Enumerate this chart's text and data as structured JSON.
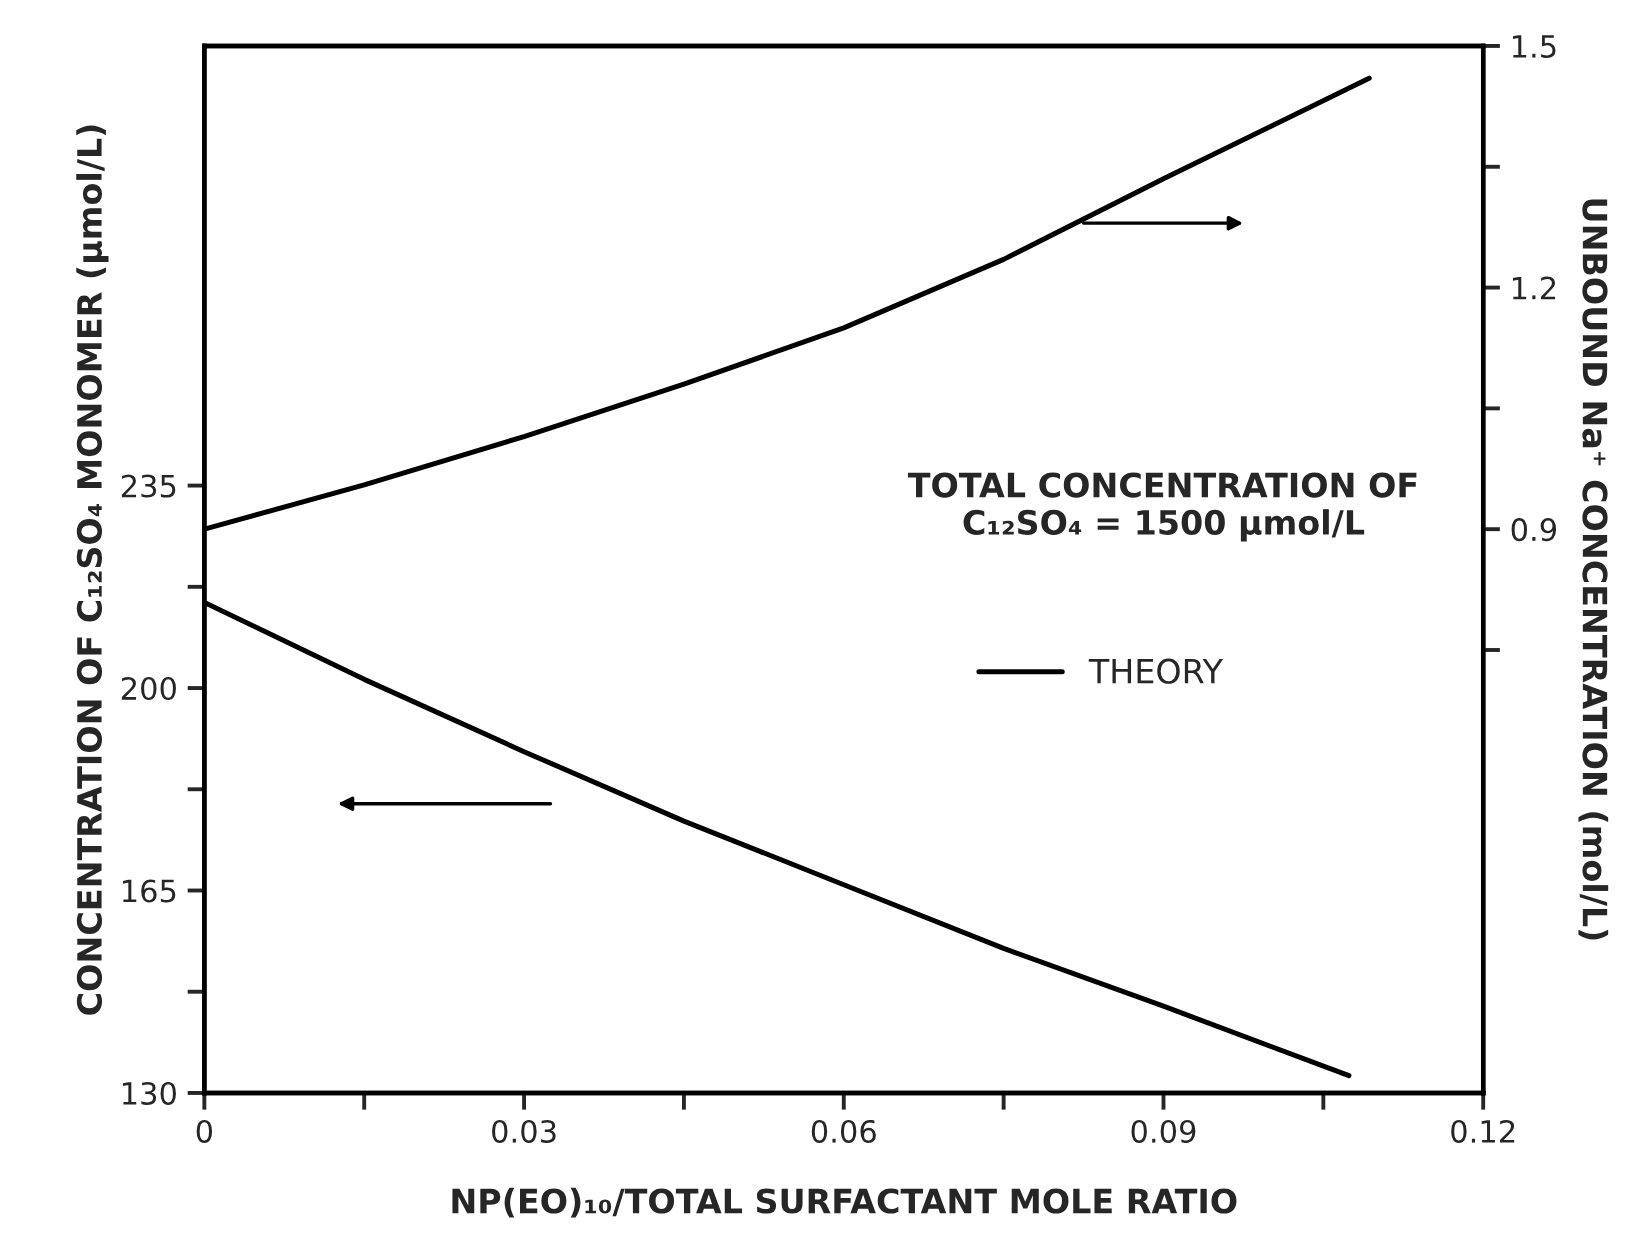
{
  "chart_data": {
    "type": "line",
    "xlabel": "NP(EO)₁₀/TOTAL SURFACTANT MOLE RATIO",
    "ylabel": "CONCENTRATION OF C₁₂SO₄ MONOMER (μmol/L)",
    "y2label": "UNBOUND Na⁺ CONCENTRATION (mol/L)",
    "xlim": [
      0,
      0.12
    ],
    "xticks": [
      0,
      {
        "value": 0.015,
        "label": null
      },
      0.03,
      {
        "value": 0.045,
        "label": null
      },
      0.06,
      {
        "value": 0.075,
        "label": null
      },
      0.09,
      {
        "value": 0.105,
        "label": null
      },
      0.12
    ],
    "ylim": [
      130,
      311
    ],
    "yticks": [
      130,
      {
        "value": 147.5,
        "label": null
      },
      165,
      {
        "value": 182.5,
        "label": null
      },
      200,
      {
        "value": 217.5,
        "label": null
      },
      235
    ],
    "y2lim": [
      0.2,
      1.5
    ],
    "y2ticks": [
      {
        "value": 0.75,
        "label": null
      },
      0.9,
      {
        "value": 1.05,
        "label": null
      },
      1.2,
      {
        "value": 1.35,
        "label": null
      },
      1.5
    ],
    "series": [
      {
        "name": "THEORY",
        "color": "#000000",
        "x": [
          0,
          0.015,
          0.03,
          0.045,
          0.06,
          0.075,
          0.09,
          0.1074
        ],
        "values": [
          214.8,
          201.5,
          189,
          177,
          166,
          155,
          145,
          133
        ]
      },
      {
        "color": "#000000",
        "axis": "y2",
        "x": [
          0,
          0.015,
          0.03,
          0.045,
          0.06,
          0.075,
          0.09,
          0.1093
        ],
        "values": [
          0.9,
          0.955,
          1.015,
          1.08,
          1.15,
          1.235,
          1.335,
          1.46
        ]
      }
    ],
    "annotations": [
      "TOTAL CONCENTRATION OF\nC₁₂SO₄ = 1500 μmol/L"
    ],
    "legend": "right",
    "grid": false,
    "marker": "none",
    "line_style": "solid"
  }
}
